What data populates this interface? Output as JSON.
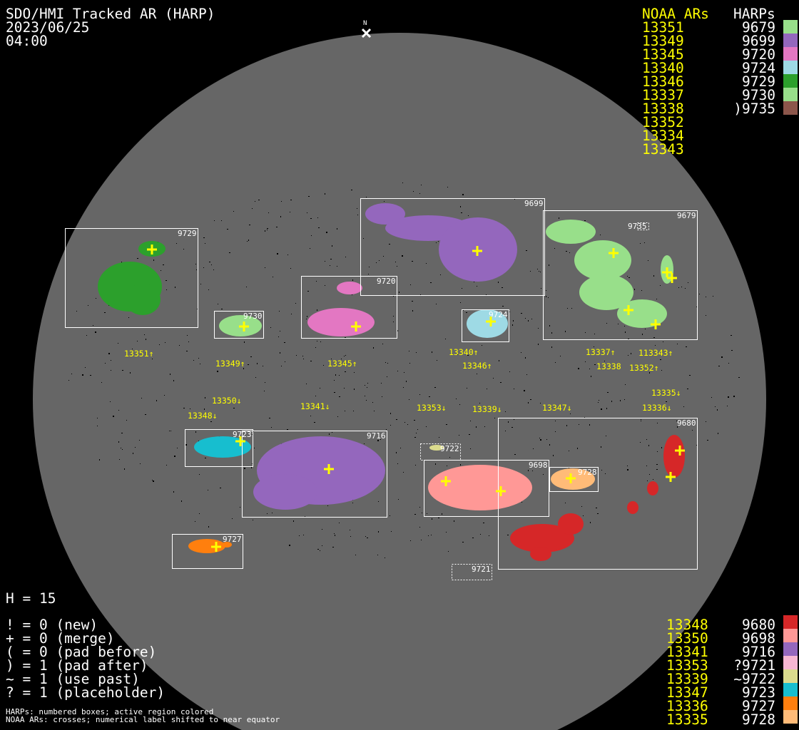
{
  "header": {
    "title": "SDO/HMI Tracked AR (HARP)",
    "date": "2023/06/25",
    "time": "04:00",
    "north_label": "N"
  },
  "legend_top": {
    "noaa_header": "NOAA ARs",
    "harp_header": "HARPs",
    "noaa": [
      "13351",
      "13349",
      "13345",
      "13340",
      "13346",
      "13337",
      "13338",
      "13352",
      "13334",
      "13343"
    ],
    "harps": [
      {
        "label": "9679",
        "color": "#98df8a"
      },
      {
        "label": "9699",
        "color": "#9467bd"
      },
      {
        "label": "9720",
        "color": "#e377c2"
      },
      {
        "label": "9724",
        "color": "#9edae5"
      },
      {
        "label": "9729",
        "color": "#2ca02c"
      },
      {
        "label": "9730",
        "color": "#98df8a"
      },
      {
        "label": ")9735",
        "color": "#8c564b"
      }
    ]
  },
  "legend_bottom": {
    "noaa": [
      "13348",
      "13350",
      "13341",
      "13353",
      "13339",
      "13347",
      "13336",
      "13335"
    ],
    "harps": [
      {
        "label": "9680",
        "color": "#d62728"
      },
      {
        "label": "9698",
        "color": "#ff9896"
      },
      {
        "label": "9716",
        "color": "#9467bd"
      },
      {
        "label": "?9721",
        "color": "#f7b6d2"
      },
      {
        "label": "~9722",
        "color": "#dbdb8d"
      },
      {
        "label": "9723",
        "color": "#17becf"
      },
      {
        "label": "9727",
        "color": "#ff7f0e"
      },
      {
        "label": "9728",
        "color": "#ffbb78"
      }
    ]
  },
  "stats": {
    "h": "H = 15",
    "lines": [
      "! = 0 (new)",
      "+ = 0 (merge)",
      "( = 0 (pad before)",
      ") = 1 (pad after)",
      "~ = 1 (use past)",
      "? = 1 (placeholder)"
    ]
  },
  "notes": [
    "HARPs: numbered boxes; active region colored",
    "NOAA ARs: crosses; numerical label shifted to near equator"
  ],
  "harp_boxes": [
    "9729",
    "9730",
    "9720",
    "9699",
    "9724",
    "9679",
    "9735",
    "9723",
    "9716",
    "9722",
    "9698",
    "9728",
    "9680",
    "9727",
    "9721"
  ],
  "noaa_labels": [
    "13351↑",
    "13349↑",
    "13345↑",
    "13340↑",
    "13346↑",
    "13337↑",
    "13338",
    "13352↑",
    "113343↑",
    "13350↓",
    "13348↓",
    "13341↓",
    "13353↓",
    "13339↓",
    "13347↓",
    "13336↓",
    "13335↓"
  ],
  "colors": {
    "disk": "#666666",
    "cross": "#ffff00",
    "noaa_text": "#ffff00"
  }
}
